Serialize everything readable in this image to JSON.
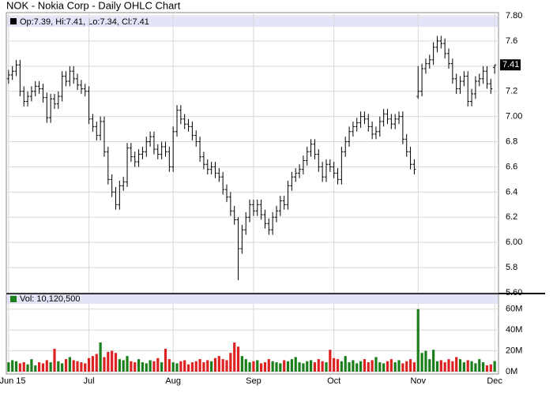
{
  "chart_data": [
    {
      "type": "ohlc",
      "title": "NOK - Nokia Corp - Daily OHLC Chart",
      "legend": "Op:7.39, Hi:7.41, Lo:7.34, Cl:7.41",
      "color": "#000000",
      "grid": true,
      "xlim": [
        -1,
        128
      ],
      "xticks": [
        {
          "value": 0,
          "label": "Jun 15"
        },
        {
          "value": 21,
          "label": "Jul"
        },
        {
          "value": 43,
          "label": "Aug"
        },
        {
          "value": 64,
          "label": "Sep"
        },
        {
          "value": 85,
          "label": "Oct"
        },
        {
          "value": 107,
          "label": "Nov"
        },
        {
          "value": 127,
          "label": "Dec"
        }
      ],
      "ylim": [
        5.6,
        7.8
      ],
      "yticks": [
        {
          "value": 5.6,
          "label": "5.60"
        },
        5.8,
        {
          "value": 6.0,
          "label": "6.00"
        },
        6.2,
        6.4,
        6.6,
        6.8,
        {
          "value": 7.0,
          "label": "7.00"
        },
        7.2,
        7.4,
        7.6,
        {
          "value": 7.8,
          "label": "7.80"
        }
      ],
      "open": [
        7.3,
        7.33,
        7.36,
        7.41,
        7.2,
        7.12,
        7.16,
        7.2,
        7.24,
        7.22,
        7.15,
        6.99,
        7.14,
        7.1,
        7.16,
        7.32,
        7.28,
        7.36,
        7.3,
        7.25,
        7.22,
        7.2,
        6.98,
        6.92,
        6.85,
        6.96,
        6.72,
        6.5,
        6.4,
        6.3,
        6.45,
        6.48,
        6.75,
        6.68,
        6.64,
        6.7,
        6.72,
        6.8,
        6.84,
        6.74,
        6.7,
        6.76,
        6.72,
        6.6,
        6.88,
        7.05,
        6.98,
        6.94,
        6.92,
        6.85,
        6.8,
        6.68,
        6.62,
        6.58,
        6.6,
        6.55,
        6.52,
        6.42,
        6.36,
        6.25,
        6.18,
        5.95,
        6.1,
        6.2,
        6.3,
        6.25,
        6.3,
        6.22,
        6.15,
        6.1,
        6.2,
        6.25,
        6.33,
        6.3,
        6.45,
        6.52,
        6.55,
        6.58,
        6.65,
        6.72,
        6.78,
        6.7,
        6.6,
        6.52,
        6.62,
        6.6,
        6.55,
        6.5,
        6.72,
        6.8,
        6.88,
        6.92,
        6.95,
        7.0,
        6.98,
        6.92,
        6.86,
        6.88,
        6.96,
        7.02,
        6.98,
        6.94,
        6.98,
        7.0,
        6.82,
        6.72,
        6.62,
        7.16,
        7.2,
        7.38,
        7.42,
        7.45,
        7.55,
        7.6,
        7.58,
        7.5,
        7.42,
        7.3,
        7.22,
        7.28,
        7.32,
        7.12,
        7.18,
        7.28,
        7.3,
        7.36,
        7.26,
        7.39
      ],
      "high": [
        7.37,
        7.4,
        7.45,
        7.45,
        7.24,
        7.2,
        7.24,
        7.28,
        7.28,
        7.26,
        7.19,
        7.18,
        7.18,
        7.2,
        7.36,
        7.36,
        7.4,
        7.4,
        7.34,
        7.29,
        7.26,
        7.24,
        7.02,
        6.96,
        7.0,
        7.0,
        6.76,
        6.54,
        6.44,
        6.49,
        6.52,
        6.79,
        6.79,
        6.72,
        6.74,
        6.76,
        6.84,
        6.88,
        6.88,
        6.78,
        6.8,
        6.8,
        6.76,
        6.92,
        7.09,
        7.09,
        7.02,
        6.98,
        6.96,
        6.89,
        6.84,
        6.72,
        6.66,
        6.64,
        6.64,
        6.59,
        6.56,
        6.46,
        6.4,
        6.29,
        6.2,
        6.14,
        6.24,
        6.34,
        6.34,
        6.34,
        6.34,
        6.26,
        6.19,
        6.24,
        6.29,
        6.37,
        6.37,
        6.49,
        6.56,
        6.59,
        6.62,
        6.69,
        6.76,
        6.82,
        6.82,
        6.74,
        6.64,
        6.66,
        6.66,
        6.64,
        6.59,
        6.76,
        6.84,
        6.92,
        6.96,
        6.99,
        7.04,
        7.04,
        7.02,
        6.96,
        6.92,
        7.0,
        7.06,
        7.06,
        7.02,
        7.02,
        7.04,
        7.04,
        6.86,
        6.76,
        6.66,
        7.4,
        7.42,
        7.46,
        7.49,
        7.59,
        7.64,
        7.64,
        7.62,
        7.54,
        7.46,
        7.34,
        7.32,
        7.36,
        7.36,
        7.22,
        7.32,
        7.34,
        7.4,
        7.4,
        7.3,
        7.41
      ],
      "low": [
        7.26,
        7.29,
        7.32,
        7.16,
        7.08,
        7.08,
        7.12,
        7.16,
        7.18,
        7.11,
        6.95,
        6.95,
        7.06,
        7.06,
        7.12,
        7.24,
        7.24,
        7.26,
        7.21,
        7.18,
        7.16,
        6.94,
        6.88,
        6.81,
        6.81,
        6.68,
        6.46,
        6.36,
        6.26,
        6.26,
        6.41,
        6.44,
        6.64,
        6.6,
        6.6,
        6.66,
        6.68,
        6.76,
        6.7,
        6.66,
        6.66,
        6.68,
        6.56,
        6.56,
        6.84,
        6.94,
        6.9,
        6.88,
        6.81,
        6.76,
        6.64,
        6.58,
        6.54,
        6.54,
        6.51,
        6.48,
        6.38,
        6.32,
        6.21,
        6.14,
        5.7,
        5.91,
        6.06,
        6.16,
        6.21,
        6.21,
        6.18,
        6.11,
        6.06,
        6.06,
        6.16,
        6.21,
        6.26,
        6.26,
        6.41,
        6.48,
        6.51,
        6.54,
        6.61,
        6.68,
        6.66,
        6.56,
        6.48,
        6.48,
        6.56,
        6.51,
        6.46,
        6.46,
        6.68,
        6.76,
        6.84,
        6.88,
        6.91,
        6.94,
        6.88,
        6.82,
        6.82,
        6.84,
        6.92,
        6.94,
        6.9,
        6.9,
        6.94,
        6.78,
        6.68,
        6.58,
        6.54,
        7.14,
        7.16,
        7.34,
        7.38,
        7.41,
        7.51,
        7.54,
        7.46,
        7.38,
        7.26,
        7.18,
        7.18,
        7.24,
        7.08,
        7.08,
        7.14,
        7.24,
        7.26,
        7.22,
        7.18,
        7.34
      ],
      "close": [
        7.33,
        7.36,
        7.41,
        7.2,
        7.12,
        7.16,
        7.2,
        7.24,
        7.22,
        7.15,
        6.99,
        7.14,
        7.1,
        7.16,
        7.32,
        7.28,
        7.36,
        7.3,
        7.25,
        7.22,
        7.2,
        6.98,
        6.92,
        6.85,
        6.96,
        6.72,
        6.5,
        6.4,
        6.3,
        6.45,
        6.48,
        6.75,
        6.68,
        6.64,
        6.7,
        6.72,
        6.8,
        6.84,
        6.74,
        6.7,
        6.76,
        6.72,
        6.6,
        6.88,
        7.05,
        6.98,
        6.94,
        6.92,
        6.85,
        6.8,
        6.68,
        6.62,
        6.58,
        6.6,
        6.55,
        6.52,
        6.42,
        6.36,
        6.25,
        6.18,
        5.95,
        6.1,
        6.2,
        6.3,
        6.25,
        6.3,
        6.22,
        6.15,
        6.1,
        6.2,
        6.25,
        6.33,
        6.3,
        6.45,
        6.52,
        6.55,
        6.58,
        6.65,
        6.72,
        6.78,
        6.7,
        6.6,
        6.52,
        6.62,
        6.6,
        6.55,
        6.5,
        6.72,
        6.8,
        6.88,
        6.92,
        6.95,
        7.0,
        6.98,
        6.92,
        6.86,
        6.88,
        6.96,
        7.02,
        6.98,
        6.94,
        6.98,
        7.0,
        6.82,
        6.72,
        6.62,
        6.58,
        7.2,
        7.38,
        7.42,
        7.45,
        7.55,
        7.6,
        7.58,
        7.5,
        7.42,
        7.3,
        7.22,
        7.28,
        7.32,
        7.12,
        7.18,
        7.28,
        7.3,
        7.36,
        7.26,
        7.22,
        7.41
      ]
    },
    {
      "type": "volume",
      "legend": "Vol: 10,120,500",
      "up_color": "#1a7f1a",
      "down_color": "#dd2222",
      "flat_color": "#2233aa",
      "legend_color": "#1a7f1a",
      "grid": true,
      "xlim": [
        -1,
        128
      ],
      "ylim": [
        0,
        75
      ],
      "yticks": [
        {
          "value": 0,
          "label": "0M"
        },
        {
          "value": 20,
          "label": "20M"
        },
        {
          "value": 40,
          "label": "40M"
        },
        {
          "value": 60,
          "label": "60M"
        }
      ],
      "values": [
        9,
        11,
        10,
        8,
        9,
        7,
        12,
        6,
        9,
        8,
        11,
        9,
        22,
        10,
        8,
        12,
        14,
        11,
        10,
        9,
        8,
        13,
        15,
        17,
        28,
        14,
        19,
        20,
        18,
        12,
        11,
        15,
        10,
        9,
        12,
        9,
        8,
        11,
        10,
        13,
        9,
        22,
        12,
        9,
        8,
        10,
        11,
        7,
        9,
        10,
        12,
        9,
        11,
        10,
        13,
        15,
        12,
        11,
        18,
        28,
        24,
        15,
        12,
        9,
        10,
        11,
        8,
        9,
        12,
        10,
        9,
        8,
        11,
        10,
        12,
        14,
        9,
        8,
        10,
        11,
        9,
        12,
        10,
        9,
        21,
        13,
        12,
        10,
        15,
        9,
        11,
        8,
        10,
        12,
        9,
        11,
        14,
        9,
        8,
        10,
        12,
        9,
        11,
        8,
        10,
        12,
        9,
        60,
        18,
        20,
        12,
        21,
        10,
        11,
        9,
        12,
        10,
        14,
        12,
        9,
        11,
        10,
        8,
        12,
        9,
        6,
        7,
        10.1205
      ]
    }
  ]
}
